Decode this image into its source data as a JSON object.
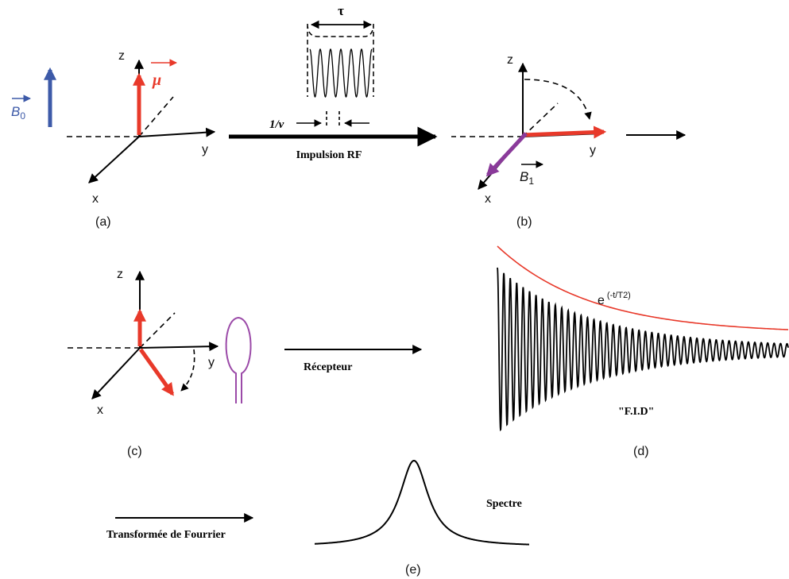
{
  "colors": {
    "black": "#000000",
    "red": "#e8392a",
    "blue": "#3d5aa8",
    "purple": "#8a3a9a",
    "envelope": "#e8392a",
    "coil": "#9b4aa8"
  },
  "panel_a": {
    "field_label": "B",
    "field_subscript": "0",
    "moment_label": "μ",
    "axis_z": "z",
    "axis_y": "y",
    "axis_x": "x",
    "caption": "(a)"
  },
  "rf_pulse": {
    "duration_label": "τ",
    "period_label": "1/ν",
    "name": "Impulsion RF"
  },
  "panel_b": {
    "axis_z": "z",
    "axis_y": "y",
    "axis_x": "x",
    "field_label": "B",
    "field_subscript": "1",
    "caption": "(b)"
  },
  "panel_c": {
    "axis_z": "z",
    "axis_y": "y",
    "axis_x": "x",
    "caption": "(c)"
  },
  "receiver": {
    "label": "Récepteur"
  },
  "panel_d": {
    "envelope_base": "e",
    "envelope_exponent": "(-t/T2)",
    "signal_label": "\"F.I.D\"",
    "caption": "(d)"
  },
  "fourier": {
    "label": "Transformée de Fourrier"
  },
  "panel_e": {
    "peak_label": "Spectre",
    "caption": "(e)"
  }
}
